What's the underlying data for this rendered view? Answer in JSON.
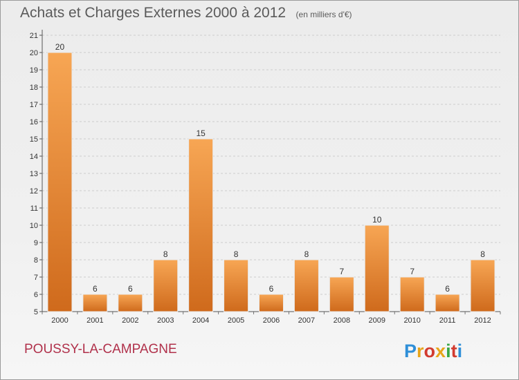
{
  "title": "Achats et Charges Externes 2000 à 2012",
  "subtitle": "(en milliers d'€)",
  "footer_name": "POUSSY-LA-CAMPAGNE",
  "logo_text": "Proxiti",
  "colors": {
    "bar_light": "#f7a654",
    "bar_dark": "#cf6a1c",
    "title": "#5a5a5a",
    "footer": "#b0304a",
    "grid": "#cccccc",
    "logo": [
      "#2f8fd8",
      "#e8a51a",
      "#d23b30",
      "#e8a51a",
      "#39a845",
      "#d23b30",
      "#2f8fd8"
    ]
  },
  "chart_data": {
    "type": "bar",
    "categories": [
      "2000",
      "2001",
      "2002",
      "2003",
      "2004",
      "2005",
      "2006",
      "2007",
      "2008",
      "2009",
      "2010",
      "2011",
      "2012"
    ],
    "values": [
      20,
      6,
      6,
      8,
      15,
      8,
      6,
      8,
      7,
      10,
      7,
      6,
      8
    ],
    "title": "Achats et Charges Externes 2000 à 2012",
    "subtitle": "(en milliers d'€)",
    "ylim": [
      5,
      21
    ],
    "yticks": [
      5,
      6,
      7,
      8,
      9,
      10,
      11,
      12,
      13,
      14,
      15,
      16,
      17,
      18,
      19,
      20,
      21
    ],
    "grid": true,
    "legend": "none"
  }
}
